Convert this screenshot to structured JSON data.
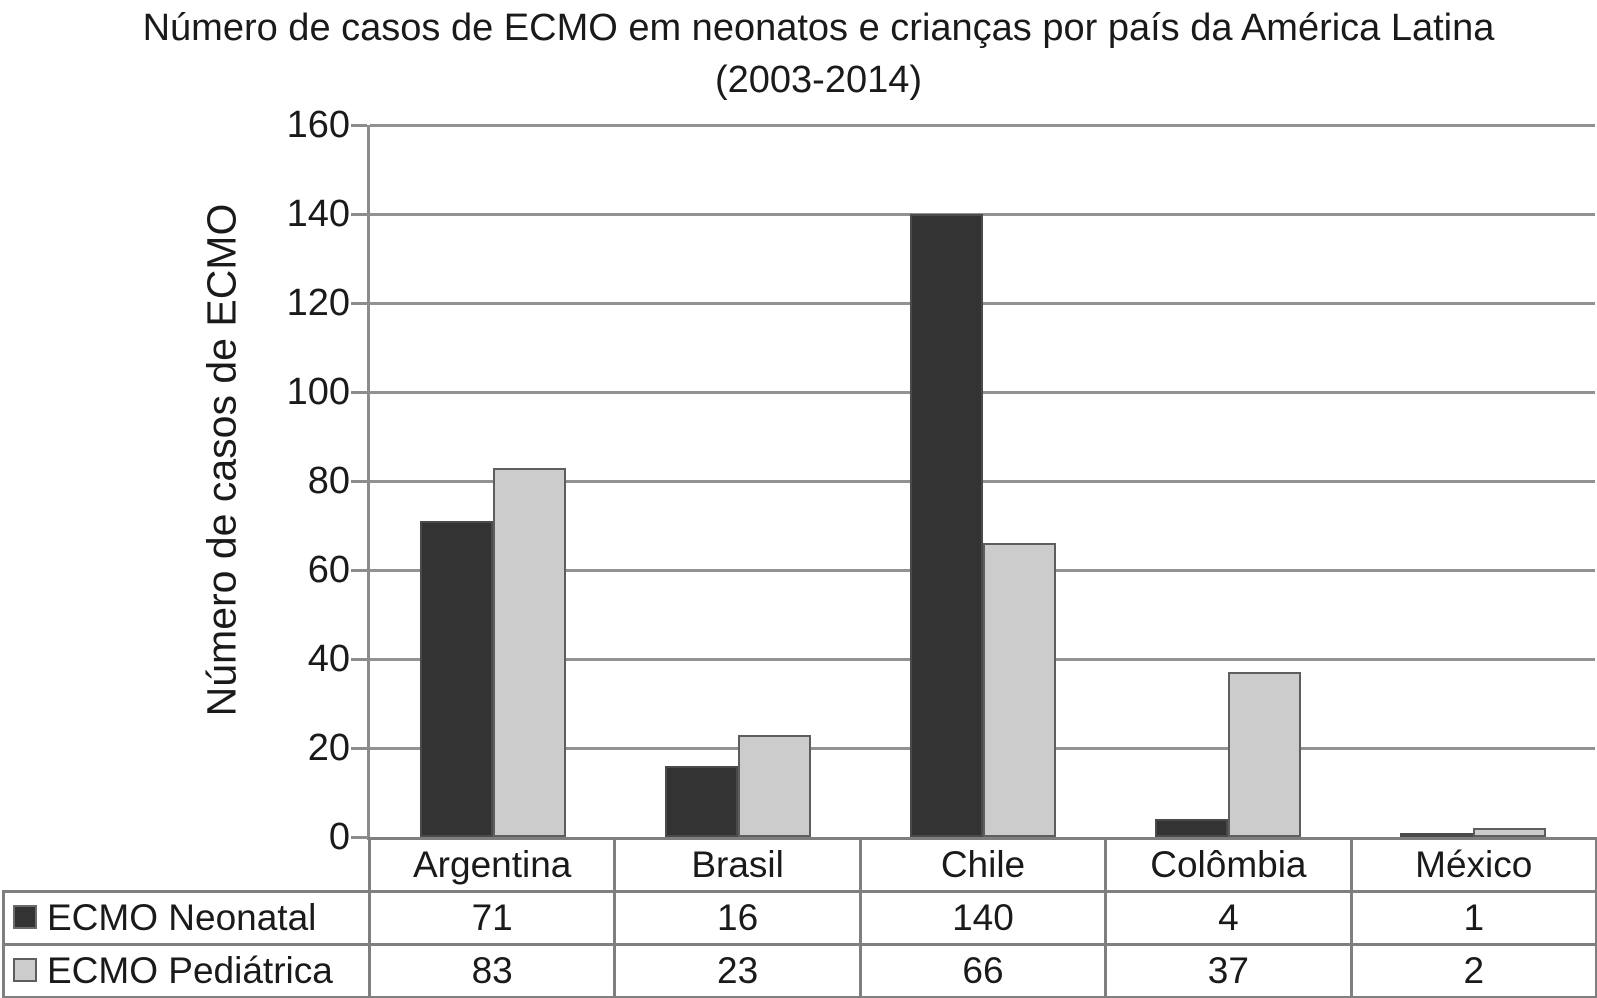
{
  "title": {
    "line1": "Número de casos de ECMO em neonatos e crianças por país da América Latina",
    "line2": "(2003-2014)"
  },
  "chart_data": {
    "type": "bar",
    "title": "Número de casos de ECMO em neonatos e crianças por país da América Latina (2003-2014)",
    "ylabel": "Número de casos de ECMO",
    "xlabel": "",
    "categories": [
      "Argentina",
      "Brasil",
      "Chile",
      "Colômbia",
      "México"
    ],
    "series": [
      {
        "name": "ECMO Neonatal",
        "color": "#333333",
        "values": [
          71,
          16,
          140,
          4,
          1
        ]
      },
      {
        "name": "ECMO Pediátrica",
        "color": "#cccccc",
        "values": [
          83,
          23,
          66,
          37,
          2
        ]
      }
    ],
    "ylim": [
      0,
      160
    ],
    "yticks": [
      0,
      20,
      40,
      60,
      80,
      100,
      120,
      140,
      160
    ],
    "grid": true,
    "legend_position": "table-left"
  },
  "colors": {
    "bar_dark": "#333333",
    "bar_light": "#cccccc",
    "gridline": "#929292",
    "axis": "#8c8c8c",
    "table_border": "#7f7f7f",
    "text": "#1a1a1a",
    "background": "#ffffff"
  }
}
